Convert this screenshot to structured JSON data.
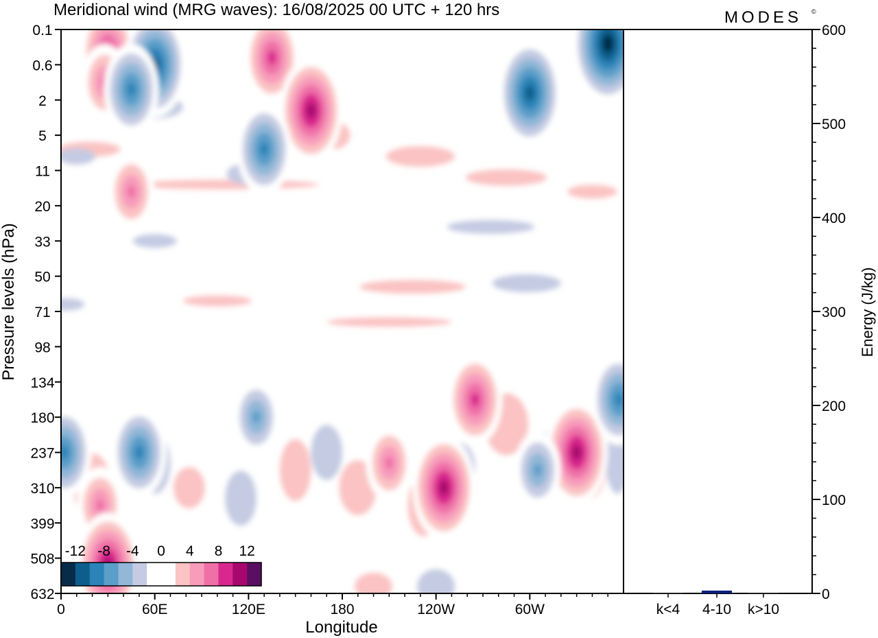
{
  "header": {
    "title": "Meridional wind (MRG waves):  16/08/2025  00 UTC  + 120 hrs",
    "logo": "MODES",
    "logo_mark": "©"
  },
  "chart_data": [
    {
      "type": "heatmap",
      "title": "Meridional wind (MRG waves):  16/08/2025  00 UTC  + 120 hrs",
      "xlabel": "Longitude",
      "ylabel": "Pressure levels (hPa)",
      "x_ticks": [
        "0",
        "60E",
        "120E",
        "180",
        "120W",
        "60W"
      ],
      "x_tick_degrees": [
        0,
        60,
        120,
        180,
        240,
        300
      ],
      "xlim_degrees": [
        0,
        360
      ],
      "y_levels": [
        "0.1",
        "0.6",
        "2",
        "5",
        "11",
        "20",
        "33",
        "50",
        "71",
        "98",
        "134",
        "180",
        "237",
        "310",
        "399",
        "508",
        "632"
      ],
      "colorbar": {
        "labels": [
          "-12",
          "-8",
          "-4",
          "0",
          "4",
          "8",
          "12"
        ],
        "label_values": [
          -12,
          -8,
          -4,
          0,
          4,
          8,
          12
        ],
        "levels": [
          -14,
          -12,
          -10,
          -8,
          -6,
          -4,
          -2,
          2,
          4,
          6,
          8,
          10,
          12,
          14
        ],
        "colors": [
          "#062c49",
          "#0d5e8c",
          "#2b83b7",
          "#5b9ec9",
          "#92b7d7",
          "#c4cbe2",
          "#ffffff",
          "#ffffff",
          "#fbc3c3",
          "#f79cbb",
          "#ef6fa7",
          "#d9288d",
          "#a7086d",
          "#5a0f63"
        ]
      },
      "features": [
        {
          "lon": 30,
          "level": 0.6,
          "value": 10
        },
        {
          "lon": 28,
          "level": 1.5,
          "value": 8
        },
        {
          "lon": 60,
          "level": 1.0,
          "value": -12
        },
        {
          "lon": 45,
          "level": 1.7,
          "value": -10
        },
        {
          "lon": 135,
          "level": 0.8,
          "value": 10
        },
        {
          "lon": 160,
          "level": 2.3,
          "value": 12
        },
        {
          "lon": 130,
          "level": 3.4,
          "value": -10
        },
        {
          "lon": 300,
          "level": 1.8,
          "value": -12
        },
        {
          "lon": 350,
          "level": 0.4,
          "value": -14
        },
        {
          "lon": 45,
          "level": 4.6,
          "value": 8
        },
        {
          "lon": 25,
          "level": 13.5,
          "value": 8
        },
        {
          "lon": 50,
          "level": 12.0,
          "value": -10
        },
        {
          "lon": 330,
          "level": 12.0,
          "value": 12
        },
        {
          "lon": 265,
          "level": 10.5,
          "value": 10
        },
        {
          "lon": 245,
          "level": 13.0,
          "value": 12
        },
        {
          "lon": 210,
          "level": 12.3,
          "value": 8
        },
        {
          "lon": 125,
          "level": 11.0,
          "value": -8
        },
        {
          "lon": 2,
          "level": 12.0,
          "value": -10
        },
        {
          "lon": 30,
          "level": 15.2,
          "value": 12
        },
        {
          "lon": 305,
          "level": 12.5,
          "value": -8
        },
        {
          "lon": 357,
          "level": 10.5,
          "value": -10
        }
      ]
    },
    {
      "type": "bar",
      "categories": [
        "k<4",
        "4-10",
        "k>10"
      ],
      "values": [
        0.5,
        3,
        0.5
      ],
      "ylabel": "Energy (J/kg)",
      "ylim": [
        0,
        600
      ],
      "y_ticks": [
        "0",
        "100",
        "200",
        "300",
        "400",
        "500",
        "600"
      ],
      "y_tick_values": [
        0,
        100,
        200,
        300,
        400,
        500,
        600
      ],
      "bar_color": "#0b1f7a"
    }
  ]
}
